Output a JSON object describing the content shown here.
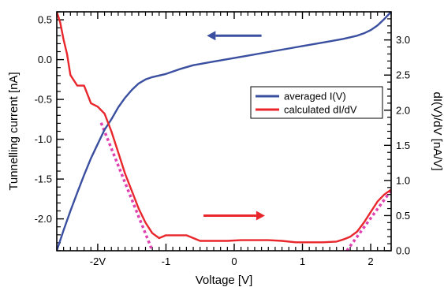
{
  "chart_data": {
    "type": "line",
    "title": "",
    "xlabel": "Voltage [V]",
    "ylabel_left": "Tunnelling current [nA]",
    "ylabel_right": "dI(V)/dV [nA/V]",
    "xlim": [
      -2.6,
      2.3
    ],
    "ylim_left": [
      -2.4,
      0.6
    ],
    "ylim_right": [
      0.0,
      3.4
    ],
    "x_tick_labels": [
      {
        "value": -2,
        "label": "-2V"
      },
      {
        "value": -1,
        "label": "-1"
      },
      {
        "value": 0,
        "label": "0"
      },
      {
        "value": 1,
        "label": "1"
      },
      {
        "value": 2,
        "label": "2"
      }
    ],
    "y_left_tick_labels": [
      {
        "value": 0.5,
        "label": "0.5"
      },
      {
        "value": 0.0,
        "label": "0.0"
      },
      {
        "value": -0.5,
        "label": "-0.5"
      },
      {
        "value": -1.0,
        "label": "-1.0"
      },
      {
        "value": -1.5,
        "label": "-1.5"
      },
      {
        "value": -2.0,
        "label": "-2.0"
      }
    ],
    "y_right_tick_labels": [
      {
        "value": 3.0,
        "label": "3.0"
      },
      {
        "value": 2.5,
        "label": "2.5"
      },
      {
        "value": 2.0,
        "label": "2.0"
      },
      {
        "value": 1.5,
        "label": "1.5"
      },
      {
        "value": 1.0,
        "label": "1.0"
      },
      {
        "value": 0.5,
        "label": "0.5"
      },
      {
        "value": 0.0,
        "label": "0.0"
      }
    ],
    "grid": false,
    "legend_position": "center-right",
    "series": [
      {
        "name": "averaged I(V)",
        "axis": "left",
        "color": "#3a4fa0",
        "x": [
          -2.6,
          -2.5,
          -2.4,
          -2.3,
          -2.2,
          -2.1,
          -2.0,
          -1.9,
          -1.8,
          -1.7,
          -1.6,
          -1.5,
          -1.4,
          -1.3,
          -1.2,
          -1.1,
          -1.0,
          -0.8,
          -0.6,
          -0.4,
          -0.2,
          0.0,
          0.2,
          0.4,
          0.6,
          0.8,
          1.0,
          1.2,
          1.4,
          1.6,
          1.8,
          1.9,
          2.0,
          2.1,
          2.2,
          2.3
        ],
        "y": [
          -2.4,
          -2.14,
          -1.9,
          -1.67,
          -1.45,
          -1.24,
          -1.06,
          -0.88,
          -0.75,
          -0.6,
          -0.48,
          -0.38,
          -0.3,
          -0.25,
          -0.22,
          -0.2,
          -0.18,
          -0.12,
          -0.07,
          -0.04,
          -0.01,
          0.02,
          0.05,
          0.08,
          0.11,
          0.14,
          0.17,
          0.2,
          0.23,
          0.26,
          0.3,
          0.33,
          0.37,
          0.43,
          0.51,
          0.6
        ]
      },
      {
        "name": "calculated dI/dV",
        "axis": "right",
        "color": "#e8262b",
        "x": [
          -2.6,
          -2.55,
          -2.5,
          -2.45,
          -2.4,
          -2.3,
          -2.2,
          -2.1,
          -2.0,
          -1.9,
          -1.8,
          -1.7,
          -1.6,
          -1.5,
          -1.4,
          -1.3,
          -1.2,
          -1.1,
          -1.0,
          -0.9,
          -0.7,
          -0.5,
          -0.3,
          -0.1,
          0.1,
          0.3,
          0.5,
          0.7,
          0.9,
          1.1,
          1.3,
          1.5,
          1.6,
          1.7,
          1.8,
          1.9,
          2.0,
          2.1,
          2.2,
          2.3
        ],
        "y": [
          3.4,
          3.25,
          3.0,
          2.8,
          2.5,
          2.35,
          2.35,
          2.1,
          2.05,
          1.95,
          1.7,
          1.4,
          1.1,
          0.85,
          0.6,
          0.4,
          0.25,
          0.18,
          0.22,
          0.22,
          0.22,
          0.14,
          0.14,
          0.14,
          0.15,
          0.15,
          0.15,
          0.14,
          0.12,
          0.12,
          0.12,
          0.13,
          0.16,
          0.2,
          0.27,
          0.4,
          0.55,
          0.7,
          0.8,
          0.87
        ]
      }
    ],
    "fit_lines": [
      {
        "axis": "right",
        "color": "#e040b0",
        "style": "dotted",
        "x": [
          -1.95,
          -1.2
        ],
        "y": [
          1.82,
          0.0
        ]
      },
      {
        "axis": "right",
        "color": "#e040b0",
        "style": "dotted",
        "x": [
          1.65,
          2.3
        ],
        "y": [
          0.0,
          0.86
        ]
      }
    ],
    "annotations": [
      {
        "type": "arrow",
        "direction": "left",
        "color": "#3a4fa0",
        "meaning": "I(V) curve uses left axis",
        "x": [
          0.4,
          -0.4
        ],
        "y_left": 0.3
      },
      {
        "type": "arrow",
        "direction": "right",
        "color": "#e8262b",
        "meaning": "dI/dV curve uses right axis",
        "x": [
          -0.45,
          0.45
        ],
        "y_right": 0.5
      }
    ]
  }
}
